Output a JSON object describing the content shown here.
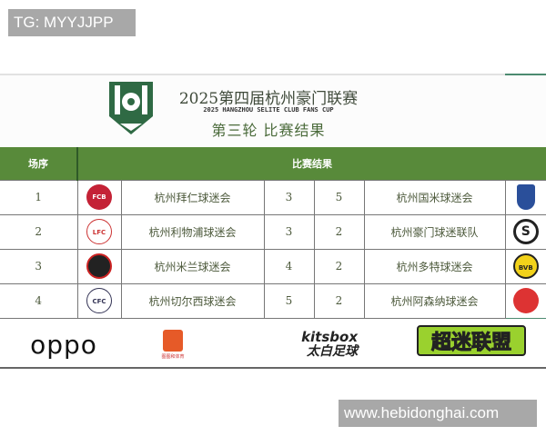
{
  "watermarks": {
    "top_left": "TG: MYYJJPP",
    "bottom_right": "www.hebidonghai.com"
  },
  "header": {
    "title": "2025第四届杭州豪门联赛",
    "subtitle": "2025 HANGZHOU SELITE CLUB FANS CUP",
    "round": "第三轮  比赛结果"
  },
  "table": {
    "headers": {
      "order": "场序",
      "result": "比赛结果"
    },
    "header_color": "#588a3a",
    "rows": [
      {
        "order": "1",
        "home": "杭州拜仁球迷会",
        "home_score": "3",
        "away_score": "5",
        "away": "杭州国米球迷会",
        "home_logo": "bayern-badge",
        "away_logo": "inter-badge"
      },
      {
        "order": "2",
        "home": "杭州利物浦球迷会",
        "home_score": "3",
        "away_score": "2",
        "away": "杭州豪门球迷联队",
        "home_logo": "liverpool-badge",
        "away_logo": "haomen-badge"
      },
      {
        "order": "3",
        "home": "杭州米兰球迷会",
        "home_score": "4",
        "away_score": "2",
        "away": "杭州多特球迷会",
        "home_logo": "milan-badge",
        "away_logo": "bvb-badge"
      },
      {
        "order": "4",
        "home": "杭州切尔西球迷会",
        "home_score": "5",
        "away_score": "2",
        "away": "杭州阿森纳球迷会",
        "home_logo": "chelsea-badge",
        "away_logo": "arsenal-badge"
      }
    ]
  },
  "sponsors": {
    "oppo": "oppo",
    "kitsbox": "kitsbox",
    "taibai": "太白足球",
    "chaomi": "超迷联盟",
    "tg_caption": "图图和体育"
  }
}
